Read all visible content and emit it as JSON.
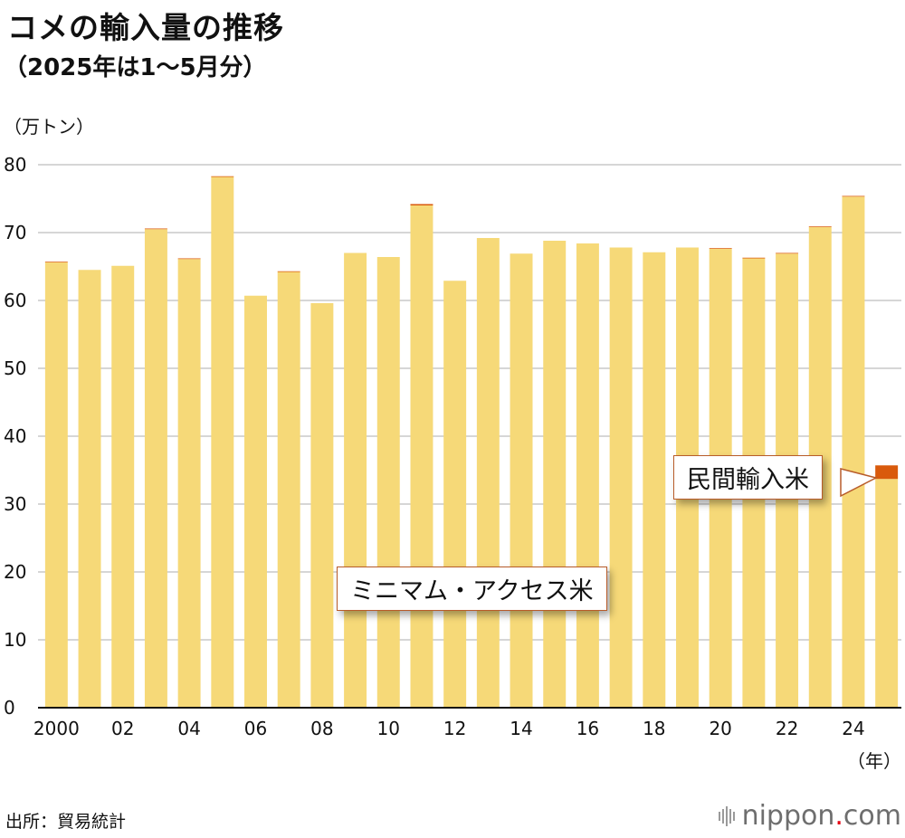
{
  "chart_data": {
    "type": "bar",
    "title": "コメの輸入量の推移",
    "subtitle": "（2025年は1～5月分）",
    "ylabel": "（万トン）",
    "xlabel": "（年）",
    "ylim": [
      0,
      80
    ],
    "yticks": [
      0,
      10,
      20,
      30,
      40,
      50,
      60,
      70,
      80
    ],
    "categories": [
      "2000",
      "2001",
      "2002",
      "2003",
      "2004",
      "2005",
      "2006",
      "2007",
      "2008",
      "2009",
      "2010",
      "2011",
      "2012",
      "2013",
      "2014",
      "2015",
      "2016",
      "2017",
      "2018",
      "2019",
      "2020",
      "2021",
      "2022",
      "2023",
      "2024",
      "2025"
    ],
    "xtick_labels": [
      "2000",
      "",
      "02",
      "",
      "04",
      "",
      "06",
      "",
      "08",
      "",
      "10",
      "",
      "12",
      "",
      "14",
      "",
      "16",
      "",
      "18",
      "",
      "20",
      "",
      "22",
      "",
      "24",
      ""
    ],
    "grid": true,
    "stacked": true,
    "series": [
      {
        "name": "ミニマム・アクセス米",
        "color": "#f6d978",
        "values": [
          65.6,
          64.5,
          65.1,
          70.5,
          66.1,
          78.2,
          60.7,
          64.2,
          59.6,
          67.0,
          66.4,
          74.0,
          62.9,
          69.2,
          66.9,
          68.8,
          68.4,
          67.8,
          67.1,
          67.8,
          67.6,
          66.2,
          66.9,
          70.8,
          75.3,
          33.7
        ]
      },
      {
        "name": "民間輸入米",
        "color": "#d95a0c",
        "values": [
          0.1,
          0.0,
          0.0,
          0.1,
          0.1,
          0.1,
          0.0,
          0.1,
          0.0,
          0.0,
          0.0,
          0.2,
          0.0,
          0.0,
          0.0,
          0.0,
          0.0,
          0.0,
          0.0,
          0.0,
          0.1,
          0.1,
          0.1,
          0.1,
          0.1,
          2.0
        ]
      }
    ]
  },
  "source": "出所：貿易統計",
  "logo": {
    "name": "nippon",
    "dot": ".",
    "tld": "com"
  },
  "colors": {
    "minimum_access": "#f6d978",
    "private": "#d95a0c",
    "grid": "#c8c8c8",
    "axis": "#111111"
  }
}
